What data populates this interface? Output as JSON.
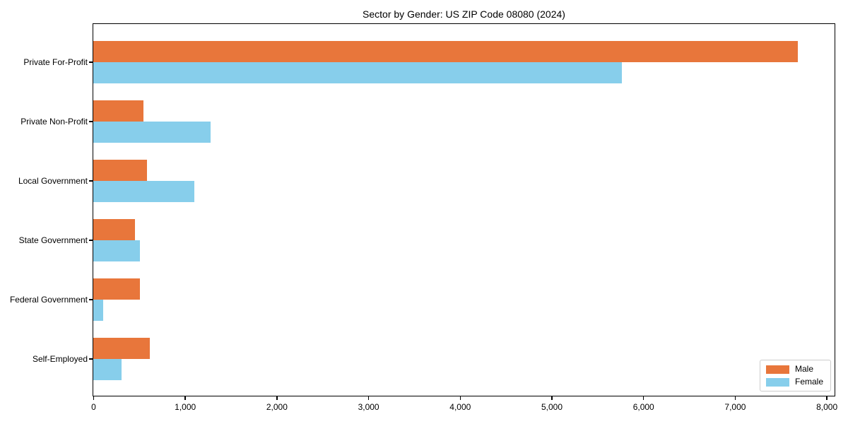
{
  "title": "Sector by Gender: US ZIP Code 08080 (2024)",
  "chart_data": {
    "type": "bar",
    "orientation": "horizontal",
    "title": "Sector by Gender: US ZIP Code 08080 (2024)",
    "categories": [
      "Private For-Profit",
      "Private Non-Profit",
      "Local Government",
      "State Government",
      "Federal Government",
      "Self-Employed"
    ],
    "series": [
      {
        "name": "Male",
        "color": "#e8763b",
        "values": [
          7690,
          545,
          585,
          455,
          505,
          620
        ]
      },
      {
        "name": "Female",
        "color": "#87ceeb",
        "values": [
          5770,
          1280,
          1100,
          505,
          105,
          310
        ]
      }
    ],
    "xlabel": "",
    "ylabel": "",
    "xlim": [
      0,
      8080
    ],
    "x_ticks": [
      0,
      1000,
      2000,
      3000,
      4000,
      5000,
      6000,
      7000,
      8000
    ],
    "x_tick_labels": [
      "0",
      "1,000",
      "2,000",
      "3,000",
      "4,000",
      "5,000",
      "6,000",
      "7,000",
      "8,000"
    ],
    "grid": false,
    "legend": {
      "position": "lower right",
      "entries": [
        "Male",
        "Female"
      ]
    },
    "colors": {
      "male": "#e8763b",
      "female": "#87ceeb",
      "spine": "#000000",
      "legend_border": "#cccccc"
    }
  }
}
